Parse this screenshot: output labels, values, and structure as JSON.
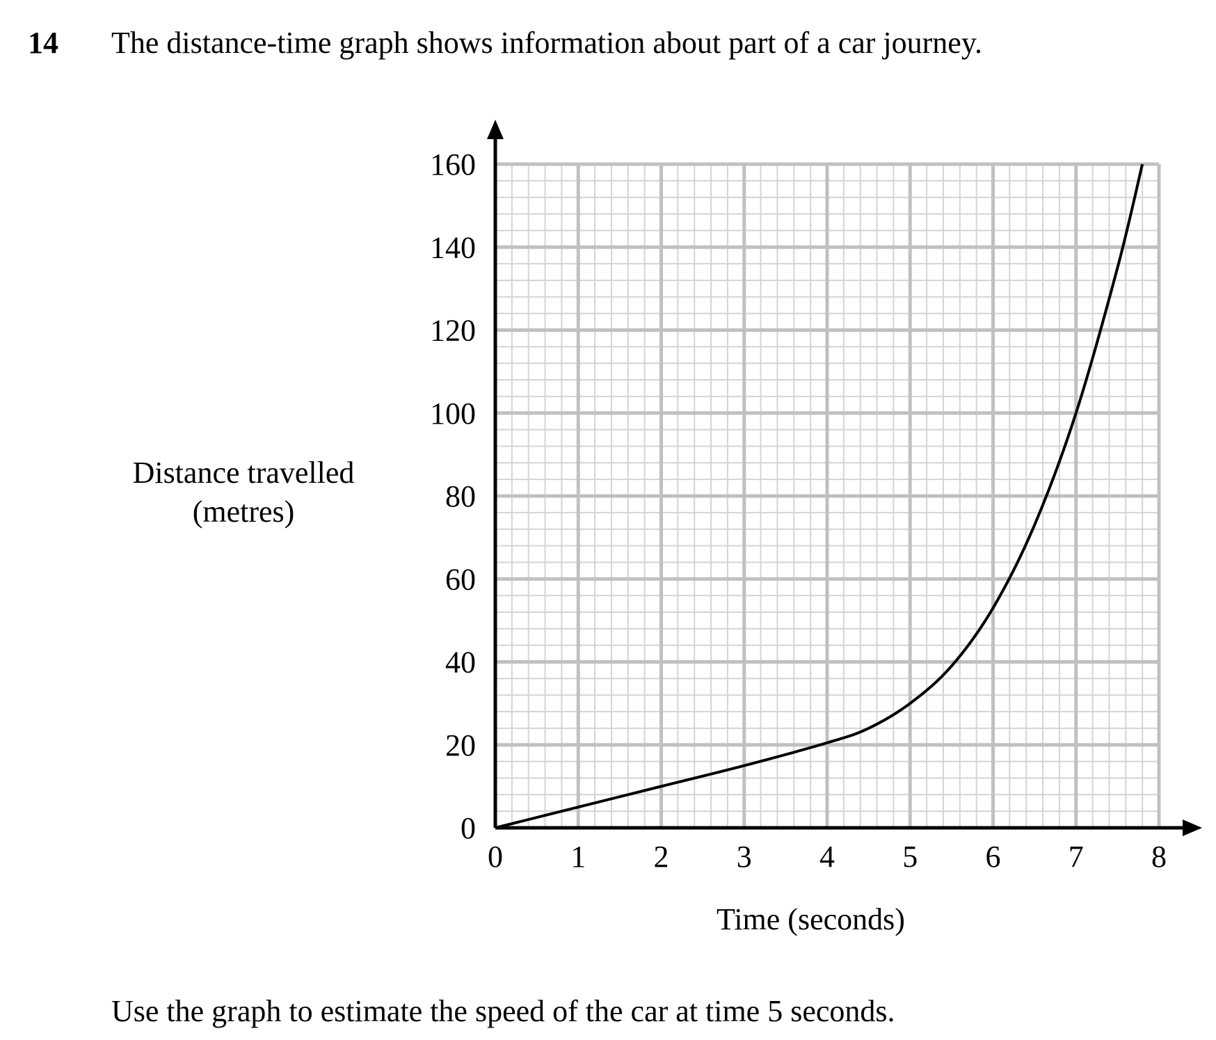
{
  "question": {
    "number": "14",
    "text": "The distance-time graph shows information about part of a car journey.",
    "prompt": "Use the graph to estimate the speed of the car at time 5 seconds."
  },
  "chart_data": {
    "type": "line",
    "xlabel": "Time (seconds)",
    "ylabel_lines": [
      "Distance travelled",
      "(metres)"
    ],
    "xlim": [
      0,
      8
    ],
    "ylim": [
      0,
      160
    ],
    "x_ticks": [
      0,
      1,
      2,
      3,
      4,
      5,
      6,
      7,
      8
    ],
    "y_ticks": [
      0,
      20,
      40,
      60,
      80,
      100,
      120,
      140,
      160
    ],
    "grid": true,
    "minor_grid_step": {
      "x": 0.2,
      "y": 4
    },
    "colors": {
      "grid_major": "#c0c0c0",
      "grid_minor": "#d4d4d4",
      "curve": "#000000",
      "axis": "#000000"
    },
    "series": [
      {
        "points": [
          [
            0,
            0
          ],
          [
            1,
            5
          ],
          [
            2,
            10
          ],
          [
            3,
            15
          ],
          [
            4,
            20.5
          ],
          [
            4.5,
            24
          ],
          [
            5,
            30
          ],
          [
            5.5,
            39
          ],
          [
            6,
            53
          ],
          [
            6.5,
            73
          ],
          [
            7,
            100
          ],
          [
            7.5,
            135
          ],
          [
            7.8,
            160
          ]
        ]
      }
    ]
  }
}
